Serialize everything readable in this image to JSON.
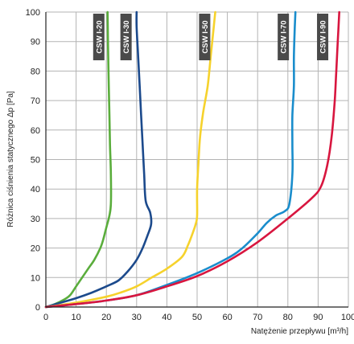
{
  "chart_data": {
    "type": "line",
    "xlabel": "Natężenie przepływu [m³/h]",
    "ylabel": "Różnica ciśnienia statycznego Δp [Pa]",
    "xlim": [
      0,
      100
    ],
    "ylim": [
      0,
      100
    ],
    "xticks": [
      "0",
      "10",
      "20",
      "30",
      "40",
      "50",
      "60",
      "70",
      "80",
      "90",
      "100"
    ],
    "yticks": [
      "0",
      "10",
      "20",
      "30",
      "40",
      "50",
      "60",
      "70",
      "80",
      "90",
      "100"
    ],
    "grid": true,
    "legend": "inline labels near top of each curve",
    "series": [
      {
        "name": "CSW I-20",
        "color": "#5aad3c",
        "label_x": 17.5,
        "points": [
          [
            0,
            0
          ],
          [
            3,
            1
          ],
          [
            6,
            2.5
          ],
          [
            8,
            4
          ],
          [
            10,
            7
          ],
          [
            12,
            10
          ],
          [
            14,
            13
          ],
          [
            16,
            16
          ],
          [
            18,
            20
          ],
          [
            19,
            23
          ],
          [
            20,
            27
          ],
          [
            21,
            31
          ],
          [
            21.5,
            35
          ],
          [
            21.5,
            45
          ],
          [
            21.2,
            55
          ],
          [
            21,
            65
          ],
          [
            20.8,
            75
          ],
          [
            20.6,
            85
          ],
          [
            20.5,
            92
          ],
          [
            20.4,
            100
          ]
        ]
      },
      {
        "name": "CSW I-30",
        "color": "#1c4a8c",
        "label_x": 26.5,
        "points": [
          [
            0,
            0
          ],
          [
            5,
            1.5
          ],
          [
            10,
            3
          ],
          [
            15,
            4.8
          ],
          [
            20,
            7
          ],
          [
            24,
            9
          ],
          [
            27,
            12
          ],
          [
            30,
            16
          ],
          [
            32,
            20
          ],
          [
            33.5,
            24
          ],
          [
            34.8,
            28
          ],
          [
            34.5,
            32
          ],
          [
            33,
            36
          ],
          [
            32.5,
            45
          ],
          [
            32,
            55
          ],
          [
            31.5,
            65
          ],
          [
            31,
            75
          ],
          [
            30.5,
            85
          ],
          [
            30,
            95
          ],
          [
            30,
            100
          ]
        ]
      },
      {
        "name": "CSW I-50",
        "color": "#f6d22c",
        "label_x": 52.5,
        "points": [
          [
            0,
            0
          ],
          [
            10,
            1.5
          ],
          [
            20,
            3.5
          ],
          [
            25,
            5
          ],
          [
            30,
            7
          ],
          [
            35,
            10
          ],
          [
            40,
            13
          ],
          [
            45,
            17
          ],
          [
            47,
            21
          ],
          [
            48.5,
            25
          ],
          [
            49.5,
            28
          ],
          [
            50,
            31
          ],
          [
            50,
            40
          ],
          [
            50.5,
            50
          ],
          [
            51,
            58
          ],
          [
            52,
            66
          ],
          [
            53.5,
            75
          ],
          [
            54.5,
            85
          ],
          [
            55.5,
            95
          ],
          [
            56,
            100
          ]
        ]
      },
      {
        "name": "CSW I-70",
        "color": "#1a8dcc",
        "label_x": 78.5,
        "points": [
          [
            0,
            0
          ],
          [
            10,
            1
          ],
          [
            20,
            2.2
          ],
          [
            30,
            4
          ],
          [
            40,
            7.5
          ],
          [
            50,
            11.5
          ],
          [
            60,
            16.5
          ],
          [
            65,
            20
          ],
          [
            70,
            25
          ],
          [
            73,
            28.5
          ],
          [
            76,
            31
          ],
          [
            79,
            32.5
          ],
          [
            80.5,
            35
          ],
          [
            81.5,
            45
          ],
          [
            81.5,
            55
          ],
          [
            81.5,
            65
          ],
          [
            82,
            75
          ],
          [
            82,
            85
          ],
          [
            82.3,
            95
          ],
          [
            82.5,
            100
          ]
        ]
      },
      {
        "name": "CSW I-90",
        "color": "#d8163f",
        "label_x": 91.5,
        "points": [
          [
            0,
            0
          ],
          [
            10,
            1
          ],
          [
            20,
            2.2
          ],
          [
            30,
            4
          ],
          [
            40,
            7
          ],
          [
            50,
            10.5
          ],
          [
            60,
            15.5
          ],
          [
            70,
            22
          ],
          [
            80,
            30
          ],
          [
            88,
            37
          ],
          [
            91,
            41
          ],
          [
            93,
            48
          ],
          [
            94.5,
            58
          ],
          [
            95.5,
            70
          ],
          [
            96,
            80
          ],
          [
            96.5,
            90
          ],
          [
            97,
            100
          ]
        ]
      }
    ]
  }
}
